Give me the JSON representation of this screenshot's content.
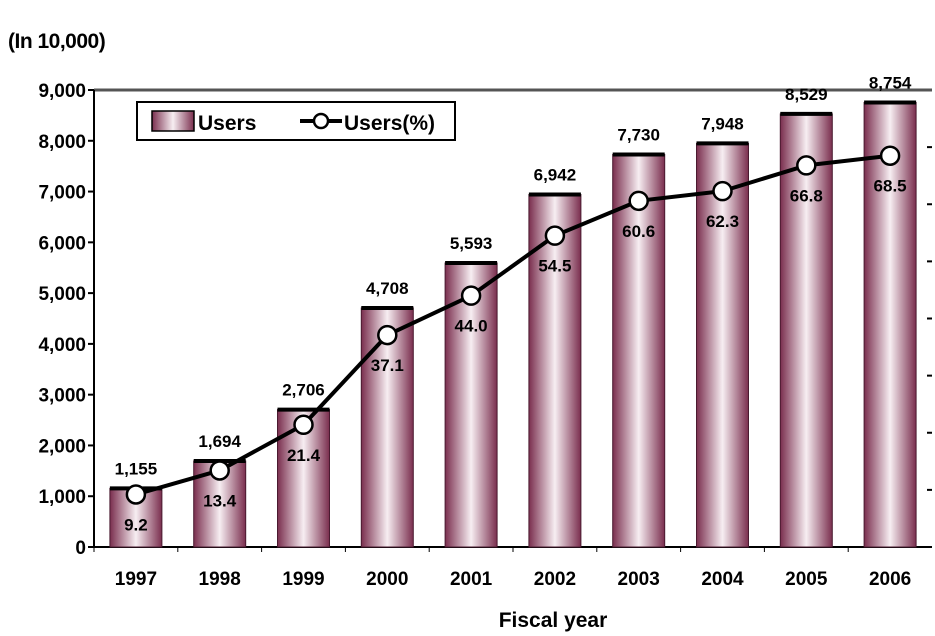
{
  "unit_label": "(In 10,000)",
  "colors": {
    "bar_edge": "#8a3a5a",
    "bar_mid": "#f6edf1",
    "bar_top": "#000000",
    "line": "#000000",
    "marker_fill": "#ffffff"
  },
  "chart_data": {
    "type": "bar",
    "categories": [
      "1997",
      "1998",
      "1999",
      "2000",
      "2001",
      "2002",
      "2003",
      "2004",
      "2005",
      "2006"
    ],
    "series": [
      {
        "name": "Users",
        "type": "bar",
        "values": [
          1155,
          1694,
          2706,
          4708,
          5593,
          6942,
          7730,
          7948,
          8529,
          8754
        ],
        "labels": [
          "1,155",
          "1,694",
          "2,706",
          "4,708",
          "5,593",
          "6,942",
          "7,730",
          "7,948",
          "8,529",
          "8,754"
        ]
      },
      {
        "name": "Users(%)",
        "type": "line",
        "values": [
          9.2,
          13.4,
          21.4,
          37.1,
          44.0,
          54.5,
          60.6,
          62.3,
          66.8,
          68.5
        ],
        "labels": [
          "9.2",
          "13.4",
          "21.4",
          "37.1",
          "44.0",
          "54.5",
          "60.6",
          "62.3",
          "66.8",
          "68.5"
        ]
      }
    ],
    "xlabel": "Fiscal year",
    "ylabel": "",
    "ylim": [
      0,
      9000
    ],
    "yticks": [
      0,
      1000,
      2000,
      3000,
      4000,
      5000,
      6000,
      7000,
      8000,
      9000
    ],
    "ytick_labels": [
      "0",
      "1,000",
      "2,000",
      "3,000",
      "4,000",
      "5,000",
      "6,000",
      "7,000",
      "8,000",
      "9,000"
    ],
    "y2lim": [
      0,
      80
    ],
    "legend": "top-left",
    "grid": false
  }
}
